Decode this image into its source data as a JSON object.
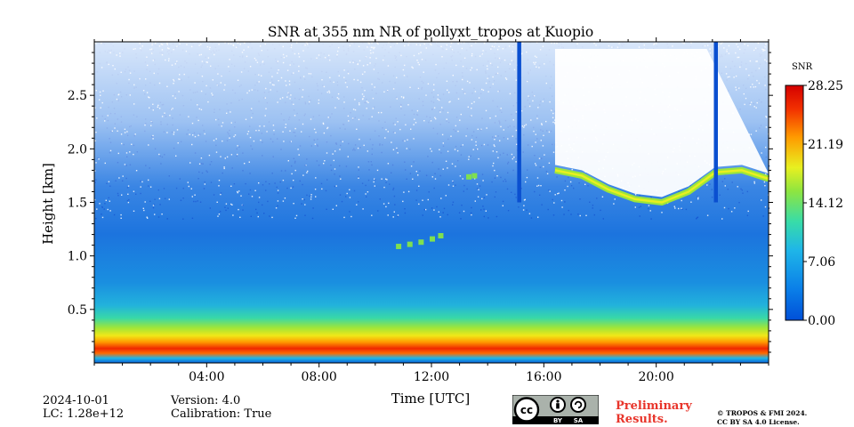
{
  "chart_data": {
    "type": "heatmap",
    "title": "SNR at 355 nm NR of pollyxt_tropos at Kuopio",
    "xlabel": "Time [UTC]",
    "ylabel": "Height [km]",
    "x_ticks": [
      "04:00",
      "08:00",
      "12:00",
      "16:00",
      "20:00"
    ],
    "x_tick_hours": [
      4,
      8,
      12,
      16,
      20
    ],
    "xlim_hours": [
      0,
      24
    ],
    "y_ticks": [
      "0.5",
      "1.0",
      "1.5",
      "2.0",
      "2.5"
    ],
    "y_tick_values": [
      0.5,
      1.0,
      1.5,
      2.0,
      2.5
    ],
    "ylim_km": [
      0,
      3.0
    ],
    "colorbar": {
      "label": "SNR",
      "ticks": [
        "0.00",
        "7.06",
        "14.12",
        "21.19",
        "28.25"
      ],
      "range": [
        0.0,
        28.25
      ],
      "colormap": "jet"
    },
    "features": {
      "near_ground_max_layer_km": [
        0.1,
        0.27
      ],
      "cloud_layer_hours": [
        16.4,
        24.0
      ],
      "cloud_base_km_approx": [
        1.8,
        1.75,
        1.62,
        1.53,
        1.5,
        1.6,
        1.78,
        1.8,
        1.72
      ],
      "vertical_gaps_hours": [
        15.1,
        22.1
      ],
      "sparse_clouds_hours": [
        10.8,
        13.6
      ]
    }
  },
  "footer": {
    "date": "2024-10-01",
    "lc": "LC: 1.28e+12",
    "version": "Version: 4.0",
    "calibration": "Calibration: True",
    "license_badge_text": [
      "BY",
      "SA"
    ],
    "preliminary_line1": "Preliminary",
    "preliminary_line2": "Results.",
    "copyright_line1": "© TROPOS & FMI 2024.",
    "copyright_line2": "CC BY SA 4.0 License."
  },
  "colors": {
    "jet_low": "#0050d8",
    "jet_high": "#d40000",
    "prelim_red": "#e8352b"
  }
}
